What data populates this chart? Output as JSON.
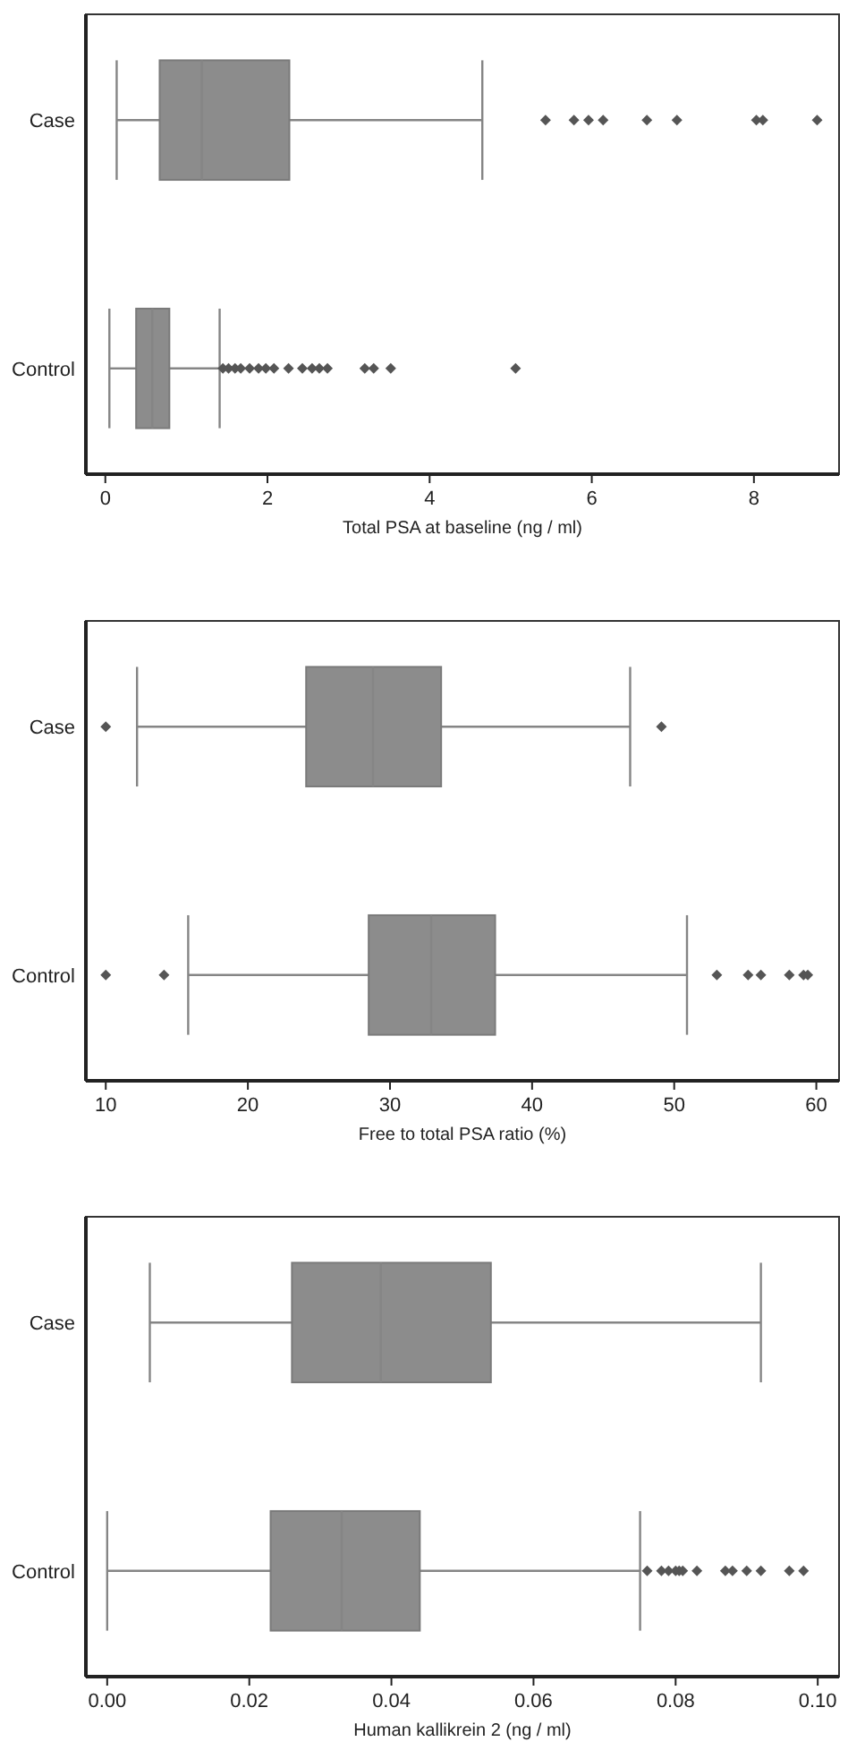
{
  "chart_data": [
    {
      "type": "box",
      "orientation": "horizontal",
      "categories": [
        "Case",
        "Control"
      ],
      "xlabel": "Total PSA at baseline (ng / ml)",
      "xlim": [
        -0.24,
        9.05
      ],
      "xticks": [
        0,
        2,
        4,
        6,
        8
      ],
      "color": "#8c8c8c",
      "boxes": [
        {
          "low": 0.14,
          "q1": 0.67,
          "median": 1.19,
          "q3": 2.27,
          "high": 4.65,
          "outliers": [
            5.43,
            5.78,
            5.96,
            6.14,
            6.68,
            7.05,
            8.03,
            8.11,
            8.78
          ]
        },
        {
          "low": 0.05,
          "q1": 0.38,
          "median": 0.58,
          "q3": 0.79,
          "high": 1.41,
          "outliers": [
            1.45,
            1.52,
            1.6,
            1.67,
            1.78,
            1.89,
            1.98,
            2.08,
            2.26,
            2.43,
            2.55,
            2.64,
            2.74,
            3.2,
            3.31,
            3.52,
            5.06
          ]
        }
      ]
    },
    {
      "type": "box",
      "orientation": "horizontal",
      "categories": [
        "Case",
        "Control"
      ],
      "xlabel": "Free to total PSA ratio (%)",
      "xlim": [
        8.6,
        61.6
      ],
      "xticks": [
        10,
        20,
        30,
        40,
        50,
        60
      ],
      "color": "#8c8c8c",
      "boxes": [
        {
          "low": 12.2,
          "q1": 24.1,
          "median": 28.8,
          "q3": 33.6,
          "high": 46.9,
          "outliers": [
            10,
            49.1
          ]
        },
        {
          "low": 15.8,
          "q1": 28.5,
          "median": 32.9,
          "q3": 37.4,
          "high": 50.9,
          "outliers": [
            10,
            14.1,
            53,
            55.2,
            56.1,
            58.1,
            59.1,
            59.4
          ]
        }
      ]
    },
    {
      "type": "box",
      "orientation": "horizontal",
      "categories": [
        "Case",
        "Control"
      ],
      "xlabel": "Human kallikrein 2 (ng / ml)",
      "xlim": [
        -0.003,
        0.103
      ],
      "xticks": [
        {
          "value": 0,
          "label": "0.00"
        },
        {
          "value": 0.02,
          "label": "0.02"
        },
        {
          "value": 0.04,
          "label": "0.04"
        },
        {
          "value": 0.06,
          "label": "0.06"
        },
        {
          "value": 0.08,
          "label": "0.08"
        },
        {
          "value": 0.1,
          "label": "0.10"
        }
      ],
      "color": "#8c8c8c",
      "boxes": [
        {
          "low": 0.006,
          "q1": 0.026,
          "median": 0.0385,
          "q3": 0.054,
          "high": 0.092
        },
        {
          "low": 0,
          "q1": 0.023,
          "median": 0.033,
          "q3": 0.044,
          "high": 0.075,
          "outliers": [
            0.076,
            0.078,
            0.079,
            0.08,
            0.0805,
            0.081,
            0.083,
            0.087,
            0.088,
            0.09,
            0.092,
            0.096,
            0.098
          ]
        }
      ]
    }
  ]
}
